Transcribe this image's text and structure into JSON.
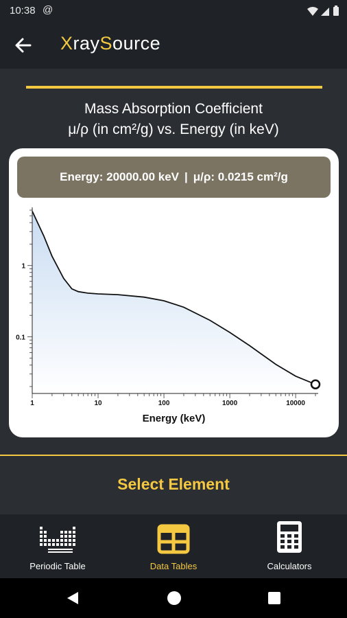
{
  "status_bar": {
    "time": "10:38",
    "at_icon": "@"
  },
  "app": {
    "title_prefix": "X",
    "title_mid": "ray",
    "title_s": "S",
    "title_rest": "ource"
  },
  "chart_title": {
    "line1": "Mass Absorption Coefficient",
    "line2": "μ/ρ (in cm²/g) vs. Energy (in keV)"
  },
  "readout": {
    "energy": "Energy: 20000.00 keV",
    "separator": "|",
    "mu_rho": "μ/ρ: 0.0215 cm²/g"
  },
  "chart_data": {
    "type": "line",
    "x_scale": "log",
    "y_scale": "log",
    "xlabel": "Energy (keV)",
    "ylabel": "",
    "xlim": [
      1,
      20000
    ],
    "ylim": [
      0.016,
      6
    ],
    "x_ticks": [
      1,
      10,
      100,
      1000,
      10000
    ],
    "x_tick_labels": [
      "1",
      "10",
      "100",
      "1000",
      "10000"
    ],
    "y_ticks": [
      0.1,
      1
    ],
    "y_tick_labels": [
      "0.1",
      "1"
    ],
    "series": [
      {
        "x": [
          1,
          1.5,
          2,
          3,
          4,
          5,
          7,
          10,
          20,
          50,
          100,
          200,
          500,
          1000,
          2000,
          5000,
          10000,
          20000
        ],
        "y": [
          5.8,
          2.6,
          1.35,
          0.66,
          0.47,
          0.43,
          0.41,
          0.4,
          0.39,
          0.36,
          0.32,
          0.26,
          0.17,
          0.115,
          0.075,
          0.041,
          0.028,
          0.0215
        ]
      }
    ],
    "highlight_point": {
      "x": 20000,
      "y": 0.0215
    },
    "fill": "gradient-blue",
    "grid": false
  },
  "select_element_label": "Select Element",
  "nav": {
    "items": [
      {
        "label": "Periodic Table",
        "icon": "periodic-table-icon"
      },
      {
        "label": "Data Tables",
        "icon": "data-tables-icon"
      },
      {
        "label": "Calculators",
        "icon": "calculator-icon"
      }
    ],
    "active_index": 1
  },
  "colors": {
    "accent": "#f5c842",
    "readout_bg": "#7c7462",
    "bar_bg": "#1f2226",
    "page_bg": "#2b2e33"
  }
}
